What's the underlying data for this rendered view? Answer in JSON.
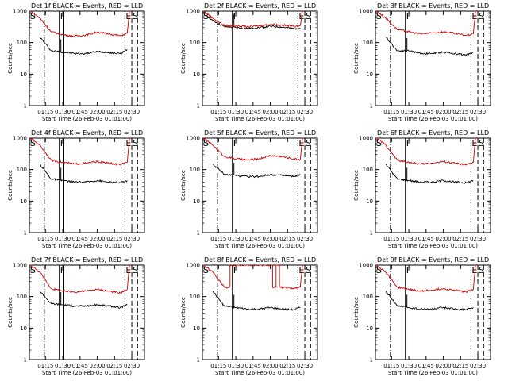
{
  "page": {
    "background": "#ffffff"
  },
  "colors": {
    "events": "#000000",
    "lld": "#cc0000",
    "frame": "#000000"
  },
  "chart_data": [
    {
      "type": "line",
      "title": "Det 1f BLACK = Events, RED = LLD",
      "xlabel": "Start Time (26-Feb-03 01:01:00)",
      "ylabel": "Counts/sec",
      "yscale": "log",
      "ylim": [
        1,
        1000
      ],
      "xlim": [
        "01:01",
        "02:41"
      ],
      "x_ticks": [
        "01:15",
        "01:30",
        "01:45",
        "02:00",
        "02:15",
        "02:30"
      ],
      "y_ticks": [
        "1",
        "10",
        "100",
        "1000"
      ],
      "markers": [
        "S",
        "F",
        "E",
        "S"
      ],
      "lines": {
        "dashdot": "01:14",
        "F_box": [
          "01:27",
          "01:31"
        ],
        "dotted": "02:24",
        "dashed": [
          "02:30",
          "02:35"
        ]
      },
      "series": [
        {
          "name": "BLACK = Events",
          "x": [
            "01:10",
            "01:20",
            "01:30",
            "01:40",
            "01:50",
            "02:00",
            "02:10",
            "02:20",
            "02:26"
          ],
          "values": [
            150,
            55,
            50,
            45,
            45,
            52,
            48,
            45,
            60
          ]
        },
        {
          "name": "RED = LLD",
          "x": [
            "01:02",
            "01:10",
            "01:20",
            "01:30",
            "01:40",
            "01:50",
            "02:00",
            "02:10",
            "02:20",
            "02:26",
            "02:28"
          ],
          "values": [
            1000,
            600,
            220,
            180,
            160,
            175,
            215,
            190,
            165,
            200,
            1000
          ]
        }
      ]
    },
    {
      "type": "line",
      "title": "Det 2f BLACK = Events, RED = LLD",
      "xlabel": "Start Time (26-Feb-03 01:01:00)",
      "ylabel": "Counts/sec",
      "yscale": "log",
      "ylim": [
        1,
        1000
      ],
      "xlim": [
        "01:01",
        "02:41"
      ],
      "x_ticks": [
        "01:15",
        "01:30",
        "01:45",
        "02:00",
        "02:15",
        "02:30"
      ],
      "y_ticks": [
        "1",
        "10",
        "100",
        "1000"
      ],
      "markers": [
        "S",
        "F",
        "E",
        "S"
      ],
      "lines": {
        "dashdot": "01:14",
        "F_box": [
          "01:27",
          "01:31"
        ],
        "dotted": "02:24",
        "dashed": [
          "02:30",
          "02:35"
        ]
      },
      "series": [
        {
          "name": "BLACK = Events",
          "x": [
            "01:02",
            "01:10",
            "01:20",
            "01:30",
            "01:40",
            "01:50",
            "02:00",
            "02:10",
            "02:20",
            "02:26"
          ],
          "values": [
            900,
            500,
            320,
            300,
            280,
            300,
            330,
            310,
            280,
            290
          ]
        },
        {
          "name": "RED = LLD",
          "x": [
            "01:02",
            "01:10",
            "01:20",
            "01:30",
            "01:40",
            "01:50",
            "02:00",
            "02:10",
            "02:20",
            "02:26",
            "02:28"
          ],
          "values": [
            1000,
            600,
            350,
            340,
            320,
            340,
            380,
            360,
            330,
            350,
            1000
          ]
        }
      ]
    },
    {
      "type": "line",
      "title": "Det 3f BLACK = Events, RED = LLD",
      "xlabel": "Start Time (26-Feb-03 01:01:00)",
      "ylabel": "Counts/sec",
      "yscale": "log",
      "ylim": [
        1,
        1000
      ],
      "xlim": [
        "01:01",
        "02:41"
      ],
      "x_ticks": [
        "01:15",
        "01:30",
        "01:45",
        "02:00",
        "02:15",
        "02:30"
      ],
      "y_ticks": [
        "1",
        "10",
        "100",
        "1000"
      ],
      "markers": [
        "S",
        "F",
        "E",
        "S"
      ],
      "lines": {
        "dashdot": "01:14",
        "F_box": [
          "01:27",
          "01:31"
        ],
        "dotted": "02:24",
        "dashed": [
          "02:30",
          "02:35"
        ]
      },
      "series": [
        {
          "name": "BLACK = Events",
          "x": [
            "01:10",
            "01:20",
            "01:30",
            "01:40",
            "01:50",
            "02:00",
            "02:10",
            "02:20",
            "02:26"
          ],
          "values": [
            150,
            55,
            55,
            45,
            45,
            50,
            45,
            40,
            50
          ]
        },
        {
          "name": "RED = LLD",
          "x": [
            "01:02",
            "01:10",
            "01:20",
            "01:30",
            "01:40",
            "01:50",
            "02:00",
            "02:10",
            "02:20",
            "02:26",
            "02:28"
          ],
          "values": [
            1000,
            600,
            260,
            220,
            190,
            200,
            220,
            195,
            170,
            190,
            1000
          ]
        }
      ]
    },
    {
      "type": "line",
      "title": "Det 4f BLACK = Events, RED = LLD",
      "xlabel": "Start Time (26-Feb-03 01:01:00)",
      "ylabel": "Counts/sec",
      "yscale": "log",
      "ylim": [
        1,
        1000
      ],
      "xlim": [
        "01:01",
        "02:41"
      ],
      "x_ticks": [
        "01:15",
        "01:30",
        "01:45",
        "02:00",
        "02:15",
        "02:30"
      ],
      "y_ticks": [
        "1",
        "10",
        "100",
        "1000"
      ],
      "markers": [
        "S",
        "F",
        "E",
        "S"
      ],
      "lines": {
        "dashdot": "01:14",
        "F_box": [
          "01:27",
          "01:31"
        ],
        "dotted": "02:24",
        "dashed": [
          "02:30",
          "02:35"
        ]
      },
      "series": [
        {
          "name": "BLACK = Events",
          "x": [
            "01:10",
            "01:20",
            "01:30",
            "01:40",
            "01:50",
            "02:00",
            "02:10",
            "02:20",
            "02:26"
          ],
          "values": [
            150,
            50,
            45,
            40,
            40,
            45,
            40,
            38,
            45
          ]
        },
        {
          "name": "RED = LLD",
          "x": [
            "01:02",
            "01:10",
            "01:20",
            "01:30",
            "01:40",
            "01:50",
            "02:00",
            "02:10",
            "02:20",
            "02:26",
            "02:28"
          ],
          "values": [
            1000,
            600,
            200,
            170,
            150,
            160,
            180,
            160,
            140,
            170,
            1000
          ]
        }
      ]
    },
    {
      "type": "line",
      "title": "Det 5f BLACK = Events, RED = LLD",
      "xlabel": "Start Time (26-Feb-03 01:01:00)",
      "ylabel": "Counts/sec",
      "yscale": "log",
      "ylim": [
        1,
        1000
      ],
      "xlim": [
        "01:01",
        "02:41"
      ],
      "x_ticks": [
        "01:15",
        "01:30",
        "01:45",
        "02:00",
        "02:15",
        "02:30"
      ],
      "y_ticks": [
        "1",
        "10",
        "100",
        "1000"
      ],
      "markers": [
        "S",
        "F",
        "E",
        "S"
      ],
      "lines": {
        "dashdot": "01:14",
        "F_box": [
          "01:27",
          "01:31"
        ],
        "dotted": "02:24",
        "dashed": [
          "02:30",
          "02:35"
        ]
      },
      "series": [
        {
          "name": "BLACK = Events",
          "x": [
            "01:10",
            "01:20",
            "01:30",
            "01:40",
            "01:50",
            "02:00",
            "02:10",
            "02:20",
            "02:26"
          ],
          "values": [
            150,
            70,
            65,
            60,
            60,
            70,
            65,
            60,
            70
          ]
        },
        {
          "name": "RED = LLD",
          "x": [
            "01:02",
            "01:10",
            "01:20",
            "01:30",
            "01:40",
            "01:50",
            "02:00",
            "02:10",
            "02:20",
            "02:26",
            "02:28"
          ],
          "values": [
            1000,
            600,
            260,
            220,
            200,
            220,
            280,
            260,
            220,
            210,
            1000
          ]
        }
      ]
    },
    {
      "type": "line",
      "title": "Det 6f BLACK = Events, RED = LLD",
      "xlabel": "Start Time (26-Feb-03 01:01:00)",
      "ylabel": "Counts/sec",
      "yscale": "log",
      "ylim": [
        1,
        1000
      ],
      "xlim": [
        "01:01",
        "02:41"
      ],
      "x_ticks": [
        "01:15",
        "01:30",
        "01:45",
        "02:00",
        "02:15",
        "02:30"
      ],
      "y_ticks": [
        "1",
        "10",
        "100",
        "1000"
      ],
      "markers": [
        "S",
        "F",
        "E",
        "S"
      ],
      "lines": {
        "dashdot": "01:14",
        "F_box": [
          "01:27",
          "01:31"
        ],
        "dotted": "02:24",
        "dashed": [
          "02:30",
          "02:35"
        ]
      },
      "series": [
        {
          "name": "BLACK = Events",
          "x": [
            "01:10",
            "01:20",
            "01:30",
            "01:40",
            "01:50",
            "02:00",
            "02:10",
            "02:20",
            "02:26"
          ],
          "values": [
            150,
            50,
            45,
            40,
            40,
            45,
            40,
            38,
            45
          ]
        },
        {
          "name": "RED = LLD",
          "x": [
            "01:02",
            "01:10",
            "01:20",
            "01:30",
            "01:40",
            "01:50",
            "02:00",
            "02:10",
            "02:20",
            "02:26",
            "02:28"
          ],
          "values": [
            1000,
            600,
            200,
            170,
            150,
            160,
            180,
            160,
            140,
            170,
            1000
          ]
        }
      ]
    },
    {
      "type": "line",
      "title": "Det 7f BLACK = Events, RED = LLD",
      "xlabel": "Start Time (26-Feb-03 01:01:00)",
      "ylabel": "Counts/sec",
      "yscale": "log",
      "ylim": [
        1,
        1000
      ],
      "xlim": [
        "01:01",
        "02:41"
      ],
      "x_ticks": [
        "01:15",
        "01:30",
        "01:45",
        "02:00",
        "02:15",
        "02:30"
      ],
      "y_ticks": [
        "1",
        "10",
        "100",
        "1000"
      ],
      "markers": [
        "S",
        "F",
        "E",
        "S"
      ],
      "lines": {
        "dashdot": "01:14",
        "F_box": [
          "01:27",
          "01:31"
        ],
        "dotted": "02:24",
        "dashed": [
          "02:30",
          "02:35"
        ]
      },
      "series": [
        {
          "name": "BLACK = Events",
          "x": [
            "01:10",
            "01:20",
            "01:30",
            "01:40",
            "01:50",
            "02:00",
            "02:10",
            "02:20",
            "02:26"
          ],
          "values": [
            150,
            60,
            55,
            50,
            50,
            55,
            50,
            45,
            55
          ]
        },
        {
          "name": "RED = LLD",
          "x": [
            "01:02",
            "01:10",
            "01:20",
            "01:30",
            "01:40",
            "01:50",
            "02:00",
            "02:10",
            "02:20",
            "02:26",
            "02:28"
          ],
          "values": [
            1000,
            600,
            180,
            150,
            140,
            150,
            170,
            150,
            130,
            170,
            1000
          ]
        }
      ]
    },
    {
      "type": "line",
      "title": "Det 8f BLACK = Events, RED = LLD",
      "xlabel": "Start Time (26-Feb-03 01:01:00)",
      "ylabel": "Counts/sec",
      "yscale": "log",
      "ylim": [
        1,
        1000
      ],
      "xlim": [
        "01:01",
        "02:41"
      ],
      "x_ticks": [
        "01:15",
        "01:30",
        "01:45",
        "02:00",
        "02:15",
        "02:30"
      ],
      "y_ticks": [
        "1",
        "10",
        "100",
        "1000"
      ],
      "markers": [
        "S",
        "F",
        "E",
        "S"
      ],
      "lines": {
        "dashdot": "01:14",
        "F_box": [
          "01:27",
          "01:31"
        ],
        "dotted": "02:24",
        "dashed": [
          "02:30",
          "02:35"
        ]
      },
      "series": [
        {
          "name": "BLACK = Events",
          "x": [
            "01:10",
            "01:20",
            "01:30",
            "01:40",
            "01:50",
            "02:00",
            "02:10",
            "02:20",
            "02:26"
          ],
          "values": [
            150,
            50,
            45,
            40,
            40,
            45,
            40,
            38,
            45
          ]
        },
        {
          "name": "RED = LLD",
          "x": [
            "01:02",
            "01:10",
            "01:20",
            "01:25",
            "01:25",
            "01:40",
            "01:50",
            "02:02",
            "02:02",
            "02:05",
            "02:05",
            "02:08",
            "02:08",
            "02:20",
            "02:26",
            "02:28"
          ],
          "values": [
            1000,
            600,
            200,
            200,
            1000,
            1000,
            1000,
            1000,
            200,
            200,
            1000,
            1000,
            200,
            180,
            200,
            1000
          ]
        }
      ]
    },
    {
      "type": "line",
      "title": "Det 9f BLACK = Events, RED = LLD",
      "xlabel": "Start Time (26-Feb-03 01:01:00)",
      "ylabel": "Counts/sec",
      "yscale": "log",
      "ylim": [
        1,
        1000
      ],
      "xlim": [
        "01:01",
        "02:41"
      ],
      "x_ticks": [
        "01:15",
        "01:30",
        "01:45",
        "02:00",
        "02:15",
        "02:30"
      ],
      "y_ticks": [
        "1",
        "10",
        "100",
        "1000"
      ],
      "markers": [
        "S",
        "F",
        "E",
        "S"
      ],
      "lines": {
        "dashdot": "01:14",
        "F_box": [
          "01:27",
          "01:31"
        ],
        "dotted": "02:24",
        "dashed": [
          "02:30",
          "02:35"
        ]
      },
      "series": [
        {
          "name": "BLACK = Events",
          "x": [
            "01:10",
            "01:20",
            "01:30",
            "01:40",
            "01:50",
            "02:00",
            "02:10",
            "02:20",
            "02:26"
          ],
          "values": [
            150,
            50,
            45,
            40,
            40,
            45,
            40,
            38,
            45
          ]
        },
        {
          "name": "RED = LLD",
          "x": [
            "01:02",
            "01:10",
            "01:20",
            "01:30",
            "01:40",
            "01:50",
            "02:00",
            "02:10",
            "02:20",
            "02:26",
            "02:28"
          ],
          "values": [
            1000,
            600,
            200,
            170,
            150,
            160,
            180,
            160,
            140,
            170,
            1000
          ]
        }
      ]
    }
  ]
}
